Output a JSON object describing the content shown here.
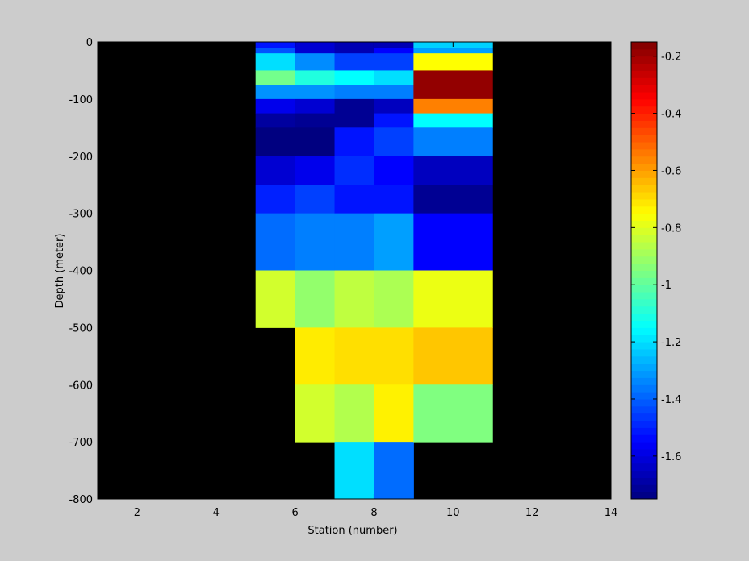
{
  "chart_data": {
    "type": "heatmap",
    "title": "",
    "xlabel": "Station (number)",
    "ylabel": "Depth (meter)",
    "xlim": [
      1,
      14
    ],
    "ylim": [
      -800,
      0
    ],
    "xticks": [
      "2",
      "4",
      "6",
      "8",
      "10",
      "12",
      "14"
    ],
    "yticks": [
      "0",
      "-100",
      "-200",
      "-300",
      "-400",
      "-500",
      "-600",
      "-700",
      "-800"
    ],
    "background_color": "#000000",
    "colormap": "jet",
    "colorbar": {
      "range": [
        -1.75,
        -0.15
      ],
      "ticks": [
        "-0.2",
        "-0.4",
        "-0.6",
        "-0.8",
        "-1",
        "-1.2",
        "-1.4",
        "-1.6"
      ]
    },
    "cells": [
      {
        "x": [
          5,
          6
        ],
        "y": [
          -10,
          0
        ],
        "value": -1.52
      },
      {
        "x": [
          5,
          6
        ],
        "y": [
          -20,
          -10
        ],
        "value": -1.42
      },
      {
        "x": [
          5,
          6
        ],
        "y": [
          -50,
          -20
        ],
        "value": -1.2
      },
      {
        "x": [
          5,
          6
        ],
        "y": [
          -75,
          -50
        ],
        "value": -0.97
      },
      {
        "x": [
          5,
          6
        ],
        "y": [
          -100,
          -75
        ],
        "value": -1.32
      },
      {
        "x": [
          5,
          6
        ],
        "y": [
          -125,
          -100
        ],
        "value": -1.58
      },
      {
        "x": [
          5,
          6
        ],
        "y": [
          -150,
          -125
        ],
        "value": -1.7
      },
      {
        "x": [
          5,
          6
        ],
        "y": [
          -200,
          -150
        ],
        "value": -1.75
      },
      {
        "x": [
          5,
          6
        ],
        "y": [
          -250,
          -200
        ],
        "value": -1.62
      },
      {
        "x": [
          5,
          6
        ],
        "y": [
          -300,
          -250
        ],
        "value": -1.5
      },
      {
        "x": [
          5,
          6
        ],
        "y": [
          -400,
          -300
        ],
        "value": -1.38
      },
      {
        "x": [
          5,
          6
        ],
        "y": [
          -500,
          -400
        ],
        "value": -0.82
      },
      {
        "x": [
          6,
          7
        ],
        "y": [
          -20,
          0
        ],
        "value": -1.62
      },
      {
        "x": [
          6,
          7
        ],
        "y": [
          -50,
          -20
        ],
        "value": -1.33
      },
      {
        "x": [
          6,
          7
        ],
        "y": [
          -75,
          -50
        ],
        "value": -1.1
      },
      {
        "x": [
          6,
          7
        ],
        "y": [
          -100,
          -75
        ],
        "value": -1.32
      },
      {
        "x": [
          6,
          7
        ],
        "y": [
          -125,
          -100
        ],
        "value": -1.62
      },
      {
        "x": [
          6,
          7
        ],
        "y": [
          -150,
          -125
        ],
        "value": -1.72
      },
      {
        "x": [
          6,
          7
        ],
        "y": [
          -200,
          -150
        ],
        "value": -1.75
      },
      {
        "x": [
          6,
          7
        ],
        "y": [
          -250,
          -200
        ],
        "value": -1.58
      },
      {
        "x": [
          6,
          7
        ],
        "y": [
          -300,
          -250
        ],
        "value": -1.45
      },
      {
        "x": [
          6,
          7
        ],
        "y": [
          -400,
          -300
        ],
        "value": -1.35
      },
      {
        "x": [
          6,
          7
        ],
        "y": [
          -500,
          -400
        ],
        "value": -0.92
      },
      {
        "x": [
          6,
          7
        ],
        "y": [
          -600,
          -500
        ],
        "value": -0.72
      },
      {
        "x": [
          6,
          7
        ],
        "y": [
          -700,
          -600
        ],
        "value": -0.82
      },
      {
        "x": [
          7,
          8
        ],
        "y": [
          -20,
          0
        ],
        "value": -1.67
      },
      {
        "x": [
          7,
          8
        ],
        "y": [
          -50,
          -20
        ],
        "value": -1.45
      },
      {
        "x": [
          7,
          8
        ],
        "y": [
          -75,
          -50
        ],
        "value": -1.15
      },
      {
        "x": [
          7,
          8
        ],
        "y": [
          -100,
          -75
        ],
        "value": -1.35
      },
      {
        "x": [
          7,
          8
        ],
        "y": [
          -150,
          -100
        ],
        "value": -1.72
      },
      {
        "x": [
          7,
          8
        ],
        "y": [
          -200,
          -150
        ],
        "value": -1.52
      },
      {
        "x": [
          7,
          8
        ],
        "y": [
          -250,
          -200
        ],
        "value": -1.48
      },
      {
        "x": [
          7,
          8
        ],
        "y": [
          -300,
          -250
        ],
        "value": -1.52
      },
      {
        "x": [
          7,
          8
        ],
        "y": [
          -400,
          -300
        ],
        "value": -1.35
      },
      {
        "x": [
          7,
          8
        ],
        "y": [
          -500,
          -400
        ],
        "value": -0.85
      },
      {
        "x": [
          7,
          8
        ],
        "y": [
          -600,
          -500
        ],
        "value": -0.7
      },
      {
        "x": [
          7,
          8
        ],
        "y": [
          -700,
          -600
        ],
        "value": -0.87
      },
      {
        "x": [
          7,
          8
        ],
        "y": [
          -800,
          -700
        ],
        "value": -1.2
      },
      {
        "x": [
          8,
          9
        ],
        "y": [
          -10,
          0
        ],
        "value": -1.67
      },
      {
        "x": [
          8,
          9
        ],
        "y": [
          -20,
          -10
        ],
        "value": -1.55
      },
      {
        "x": [
          8,
          9
        ],
        "y": [
          -50,
          -20
        ],
        "value": -1.45
      },
      {
        "x": [
          8,
          9
        ],
        "y": [
          -75,
          -50
        ],
        "value": -1.2
      },
      {
        "x": [
          8,
          9
        ],
        "y": [
          -100,
          -75
        ],
        "value": -1.35
      },
      {
        "x": [
          8,
          9
        ],
        "y": [
          -125,
          -100
        ],
        "value": -1.65
      },
      {
        "x": [
          8,
          9
        ],
        "y": [
          -150,
          -125
        ],
        "value": -1.52
      },
      {
        "x": [
          8,
          9
        ],
        "y": [
          -200,
          -150
        ],
        "value": -1.45
      },
      {
        "x": [
          8,
          9
        ],
        "y": [
          -250,
          -200
        ],
        "value": -1.55
      },
      {
        "x": [
          8,
          9
        ],
        "y": [
          -300,
          -250
        ],
        "value": -1.52
      },
      {
        "x": [
          8,
          9
        ],
        "y": [
          -400,
          -300
        ],
        "value": -1.3
      },
      {
        "x": [
          8,
          9
        ],
        "y": [
          -500,
          -400
        ],
        "value": -0.88
      },
      {
        "x": [
          8,
          9
        ],
        "y": [
          -600,
          -500
        ],
        "value": -0.7
      },
      {
        "x": [
          8,
          9
        ],
        "y": [
          -700,
          -600
        ],
        "value": -0.73
      },
      {
        "x": [
          8,
          9
        ],
        "y": [
          -800,
          -700
        ],
        "value": -1.38
      },
      {
        "x": [
          9,
          11
        ],
        "y": [
          -10,
          0
        ],
        "value": -1.22
      },
      {
        "x": [
          9,
          11
        ],
        "y": [
          -20,
          -10
        ],
        "value": -1.3
      },
      {
        "x": [
          9,
          11
        ],
        "y": [
          -50,
          -20
        ],
        "value": -0.75
      },
      {
        "x": [
          9,
          11
        ],
        "y": [
          -100,
          -50
        ],
        "value": -0.18
      },
      {
        "x": [
          9,
          11
        ],
        "y": [
          -125,
          -100
        ],
        "value": -0.55
      },
      {
        "x": [
          9,
          11
        ],
        "y": [
          -150,
          -125
        ],
        "value": -1.15
      },
      {
        "x": [
          9,
          11
        ],
        "y": [
          -200,
          -150
        ],
        "value": -1.35
      },
      {
        "x": [
          9,
          11
        ],
        "y": [
          -250,
          -200
        ],
        "value": -1.65
      },
      {
        "x": [
          9,
          11
        ],
        "y": [
          -300,
          -250
        ],
        "value": -1.72
      },
      {
        "x": [
          9,
          11
        ],
        "y": [
          -400,
          -300
        ],
        "value": -1.55
      },
      {
        "x": [
          9,
          11
        ],
        "y": [
          -500,
          -400
        ],
        "value": -0.78
      },
      {
        "x": [
          9,
          11
        ],
        "y": [
          -600,
          -500
        ],
        "value": -0.66
      },
      {
        "x": [
          9,
          11
        ],
        "y": [
          -700,
          -600
        ],
        "value": -0.95
      }
    ]
  }
}
